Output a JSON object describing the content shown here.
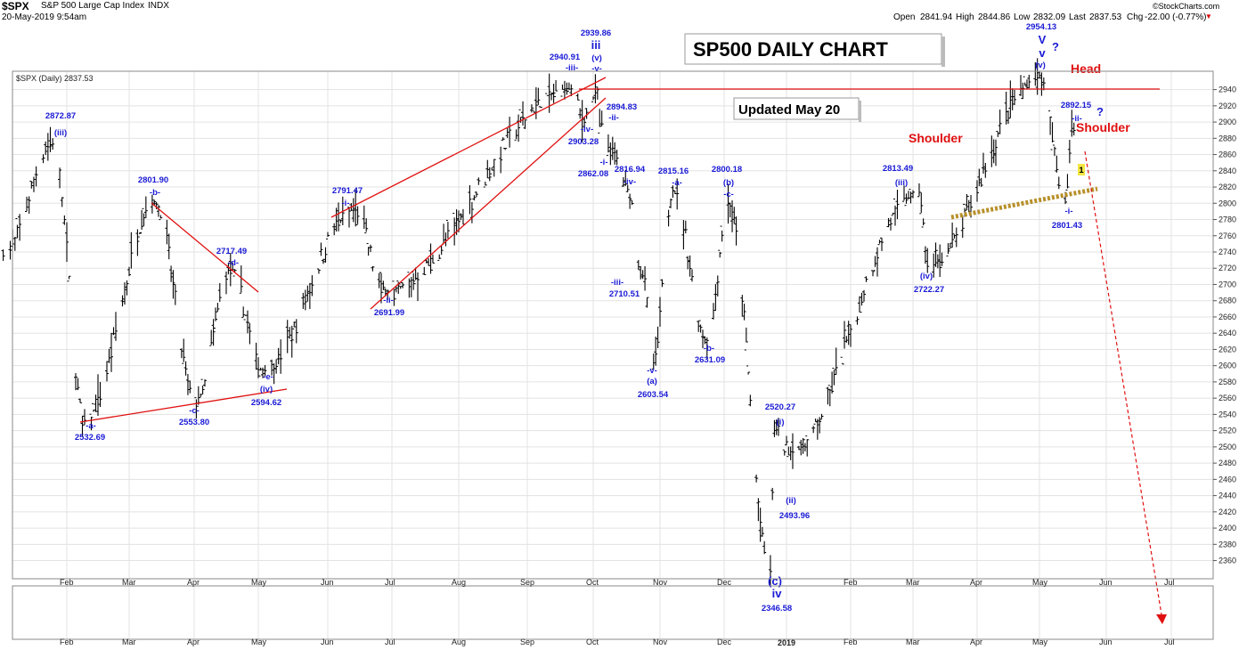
{
  "header": {
    "symbol": "$SPX",
    "name": "S&P 500 Large Cap Index",
    "exchange": "INDX",
    "date": "20-May-2019 9:54am",
    "open_label": "Open",
    "open": "2841.94",
    "high_label": "High",
    "high": "2844.86",
    "low_label": "Low",
    "low": "2832.09",
    "last_label": "Last",
    "last": "2837.53",
    "chg_label": "Chg",
    "chg": "-22.00 (-0.77%)",
    "copyright": "©StockCharts.com"
  },
  "chart_legend": "$SPX (Daily) 2837.53",
  "title_box": "SP500 DAILY CHART",
  "updated_box": "Updated May 20",
  "red_labels": {
    "head": "Head",
    "shoulder_left": "Shoulder",
    "shoulder_right": "Shoulder"
  },
  "chart_data": {
    "type": "ohlc",
    "y_ticks": [
      2360,
      2380,
      2400,
      2420,
      2440,
      2460,
      2480,
      2500,
      2520,
      2540,
      2560,
      2580,
      2600,
      2620,
      2640,
      2660,
      2680,
      2700,
      2720,
      2740,
      2760,
      2780,
      2800,
      2820,
      2840,
      2860,
      2880,
      2900,
      2920,
      2940
    ],
    "ylim": [
      2340,
      2960
    ],
    "x_month_labels": [
      "Feb",
      "Mar",
      "Apr",
      "May",
      "Jun",
      "Jul",
      "Aug",
      "Sep",
      "Oct",
      "Nov",
      "Dec",
      "2019",
      "Feb",
      "Mar",
      "Apr",
      "May",
      "Jun",
      "Jul"
    ],
    "bottom_year_label": "2019",
    "key_points": [
      {
        "date": "2018-01-26",
        "value": 2872.87
      },
      {
        "date": "2018-02-09",
        "value": 2532.69
      },
      {
        "date": "2018-03-13",
        "value": 2801.9
      },
      {
        "date": "2018-04-02",
        "value": 2553.8
      },
      {
        "date": "2018-04-18",
        "value": 2717.49
      },
      {
        "date": "2018-05-03",
        "value": 2594.62
      },
      {
        "date": "2018-06-13",
        "value": 2791.47
      },
      {
        "date": "2018-06-28",
        "value": 2691.99
      },
      {
        "date": "2018-09-21",
        "value": 2940.91
      },
      {
        "date": "2018-09-26",
        "value": 2903.28
      },
      {
        "date": "2018-10-03",
        "value": 2939.86
      },
      {
        "date": "2018-10-04",
        "value": 2894.83
      },
      {
        "date": "2018-10-10",
        "value": 2862.08
      },
      {
        "date": "2018-10-17",
        "value": 2816.94
      },
      {
        "date": "2018-10-24",
        "value": 2710.51
      },
      {
        "date": "2018-10-29",
        "value": 2603.54
      },
      {
        "date": "2018-11-07",
        "value": 2815.16
      },
      {
        "date": "2018-11-23",
        "value": 2631.09
      },
      {
        "date": "2018-12-03",
        "value": 2800.18
      },
      {
        "date": "2018-12-24",
        "value": 2346.58
      },
      {
        "date": "2018-12-26",
        "value": 2520.27
      },
      {
        "date": "2019-01-03",
        "value": 2493.96
      },
      {
        "date": "2019-03-04",
        "value": 2813.49
      },
      {
        "date": "2019-03-08",
        "value": 2722.27
      },
      {
        "date": "2019-05-01",
        "value": 2954.13
      },
      {
        "date": "2019-05-13",
        "value": 2801.43
      },
      {
        "date": "2019-05-16",
        "value": 2892.15
      }
    ]
  },
  "wave_labels": [
    {
      "t": "2872.87",
      "v": 2872.87
    },
    {
      "t": "(iii)"
    },
    {
      "t": "-a-"
    },
    {
      "t": "2532.69",
      "v": 2532.69
    },
    {
      "t": "2801.90",
      "v": 2801.9
    },
    {
      "t": "-b-"
    },
    {
      "t": "-c-"
    },
    {
      "t": "2553.80",
      "v": 2553.8
    },
    {
      "t": "2717.49",
      "v": 2717.49
    },
    {
      "t": "-d-"
    },
    {
      "t": "-e-"
    },
    {
      "t": "(iv)"
    },
    {
      "t": "2594.62",
      "v": 2594.62
    },
    {
      "t": "2791.47",
      "v": 2791.47
    },
    {
      "t": "-i-"
    },
    {
      "t": "-ii-"
    },
    {
      "t": "2691.99",
      "v": 2691.99
    },
    {
      "t": "2940.91",
      "v": 2940.91
    },
    {
      "t": "-iii-"
    },
    {
      "t": "2939.86",
      "v": 2939.86
    },
    {
      "t": "iii"
    },
    {
      "t": "(v)"
    },
    {
      "t": "-v-"
    },
    {
      "t": "2894.83",
      "v": 2894.83
    },
    {
      "t": "-ii-"
    },
    {
      "t": "-iv-"
    },
    {
      "t": "2903.28",
      "v": 2903.28
    },
    {
      "t": "-i-"
    },
    {
      "t": "2862.08",
      "v": 2862.08
    },
    {
      "t": "2816.94",
      "v": 2816.94
    },
    {
      "t": "-iv-"
    },
    {
      "t": "-iii-"
    },
    {
      "t": "2710.51",
      "v": 2710.51
    },
    {
      "t": "-v-"
    },
    {
      "t": "(a)"
    },
    {
      "t": "2603.54",
      "v": 2603.54
    },
    {
      "t": "2815.16",
      "v": 2815.16
    },
    {
      "t": "-a-"
    },
    {
      "t": "-b-"
    },
    {
      "t": "2631.09",
      "v": 2631.09
    },
    {
      "t": "2800.18",
      "v": 2800.18
    },
    {
      "t": "(b)"
    },
    {
      "t": "-c-"
    },
    {
      "t": "2520.27",
      "v": 2520.27
    },
    {
      "t": "(i)"
    },
    {
      "t": "(ii)"
    },
    {
      "t": "2493.96",
      "v": 2493.96
    },
    {
      "t": "(c)"
    },
    {
      "t": "iv"
    },
    {
      "t": "2346.58",
      "v": 2346.58
    },
    {
      "t": "2813.49",
      "v": 2813.49
    },
    {
      "t": "(iii)"
    },
    {
      "t": "(iv)"
    },
    {
      "t": "2722.27",
      "v": 2722.27
    },
    {
      "t": "2954.13",
      "v": 2954.13
    },
    {
      "t": "V"
    },
    {
      "t": "v"
    },
    {
      "t": "(v)"
    },
    {
      "t": "?"
    },
    {
      "t": "2892.15",
      "v": 2892.15
    },
    {
      "t": "-ii-"
    },
    {
      "t": "?"
    },
    {
      "t": "-i-"
    },
    {
      "t": "2801.43",
      "v": 2801.43
    },
    {
      "t": "1"
    }
  ],
  "colors": {
    "price": "#000000",
    "wave": "#1a1ad6",
    "trend": "#e01010",
    "neckline": "#b8902a",
    "grid": "#e3e3e3"
  }
}
